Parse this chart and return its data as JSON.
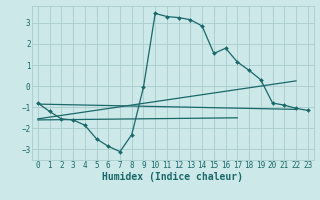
{
  "xlabel": "Humidex (Indice chaleur)",
  "bg_color": "#cce8e8",
  "grid_color": "#aacccc",
  "line_color": "#1a6868",
  "xlim": [
    -0.5,
    23.5
  ],
  "ylim": [
    -3.5,
    3.8
  ],
  "xticks": [
    0,
    1,
    2,
    3,
    4,
    5,
    6,
    7,
    8,
    9,
    10,
    11,
    12,
    13,
    14,
    15,
    16,
    17,
    18,
    19,
    20,
    21,
    22,
    23
  ],
  "yticks": [
    -3,
    -2,
    -1,
    0,
    1,
    2,
    3
  ],
  "main_curve": {
    "x": [
      0,
      1,
      2,
      3,
      4,
      5,
      6,
      7,
      8,
      9,
      10,
      11,
      12,
      13,
      14,
      15,
      16,
      17,
      18,
      19,
      20,
      21,
      22,
      23
    ],
    "y": [
      -0.8,
      -1.2,
      -1.55,
      -1.6,
      -1.85,
      -2.5,
      -2.85,
      -3.1,
      -2.3,
      -0.05,
      3.45,
      3.3,
      3.25,
      3.15,
      2.85,
      1.55,
      1.8,
      1.15,
      0.75,
      0.3,
      -0.8,
      -0.9,
      -1.05,
      -1.15
    ]
  },
  "line1": {
    "x": [
      0,
      22
    ],
    "y": [
      -0.85,
      -1.1
    ]
  },
  "line2": {
    "x": [
      0,
      22
    ],
    "y": [
      -1.55,
      0.25
    ]
  },
  "line3": {
    "x": [
      0,
      17
    ],
    "y": [
      -1.6,
      -1.5
    ]
  },
  "tick_fontsize": 5.5,
  "label_fontsize": 7.0
}
